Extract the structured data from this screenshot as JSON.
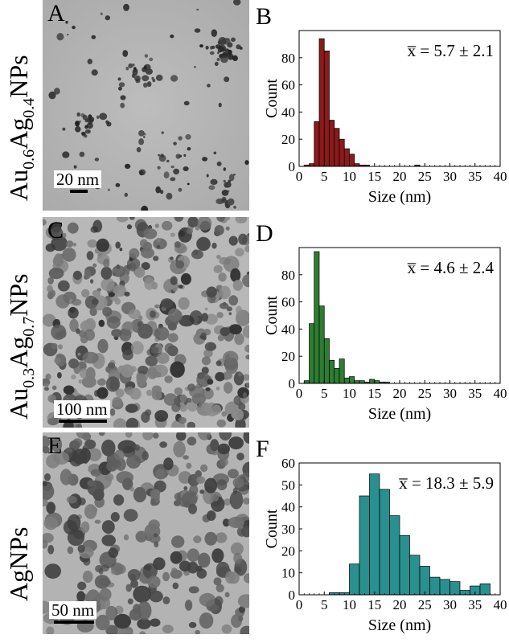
{
  "rows": [
    {
      "sample_label_parts": [
        "Au",
        "0.6",
        "Ag",
        "0.4",
        "NPs"
      ],
      "tem_letter": "A",
      "scalebar_label": "20 nm",
      "hist_letter": "B",
      "mean_label": "x̅ = 5.7 ± 2.1"
    },
    {
      "sample_label_parts": [
        "Au",
        "0.3",
        "Ag",
        "0.7",
        "NPs"
      ],
      "tem_letter": "C",
      "scalebar_label": "100 nm",
      "hist_letter": "D",
      "mean_label": "x̅ = 4.6 ± 2.4"
    },
    {
      "sample_label_parts": [
        "AgNPs"
      ],
      "tem_letter": "E",
      "scalebar_label": "50 nm",
      "hist_letter": "F",
      "mean_label": "x̅ = 18.3 ± 5.9"
    }
  ],
  "chart_data": [
    {
      "type": "bar",
      "xlabel": "Size (nm)",
      "ylabel": "Count",
      "xlim": [
        0,
        40
      ],
      "ylim": [
        0,
        100
      ],
      "xticks": [
        0,
        5,
        10,
        15,
        20,
        25,
        30,
        35,
        40
      ],
      "yticks": [
        0,
        20,
        40,
        60,
        80
      ],
      "bin_width": 1,
      "bin_starts": [
        1,
        2,
        3,
        4,
        5,
        6,
        7,
        8,
        9,
        10,
        11,
        12,
        13,
        14,
        15,
        16,
        17,
        18,
        19,
        20,
        21,
        22,
        23,
        24
      ],
      "values": [
        1,
        2,
        33,
        94,
        85,
        34,
        28,
        20,
        13,
        9,
        2,
        1,
        1,
        0,
        0,
        0,
        0,
        0,
        0,
        0,
        0,
        0,
        1,
        0
      ],
      "color": "#8b1a1a",
      "grid": false
    },
    {
      "type": "bar",
      "xlabel": "Size (nm)",
      "ylabel": "Count",
      "xlim": [
        0,
        40
      ],
      "ylim": [
        0,
        100
      ],
      "xticks": [
        0,
        5,
        10,
        15,
        20,
        25,
        30,
        35,
        40
      ],
      "yticks": [
        0,
        20,
        40,
        60,
        80
      ],
      "bin_width": 1,
      "bin_starts": [
        1,
        2,
        3,
        4,
        5,
        6,
        7,
        8,
        9,
        10,
        11,
        12,
        13,
        14,
        15,
        16,
        17,
        18
      ],
      "values": [
        2,
        44,
        97,
        57,
        33,
        17,
        11,
        18,
        4,
        5,
        2,
        2,
        1,
        3,
        2,
        1,
        1,
        0
      ],
      "color": "#2e7d32",
      "grid": false
    },
    {
      "type": "bar",
      "xlabel": "Size (nm)",
      "ylabel": "Count",
      "xlim": [
        0,
        40
      ],
      "ylim": [
        0,
        60
      ],
      "xticks": [
        0,
        5,
        10,
        15,
        20,
        25,
        30,
        35,
        40
      ],
      "yticks": [
        0,
        10,
        20,
        30,
        40,
        50,
        60
      ],
      "bin_width": 2,
      "bin_starts": [
        6,
        8,
        10,
        12,
        14,
        16,
        18,
        20,
        22,
        24,
        26,
        28,
        30,
        32,
        34,
        36
      ],
      "values": [
        1,
        1,
        14,
        45,
        55,
        48,
        36,
        27,
        18,
        13,
        8,
        7,
        6,
        2,
        4,
        5
      ],
      "color": "#2a8f8f",
      "grid": false
    }
  ]
}
